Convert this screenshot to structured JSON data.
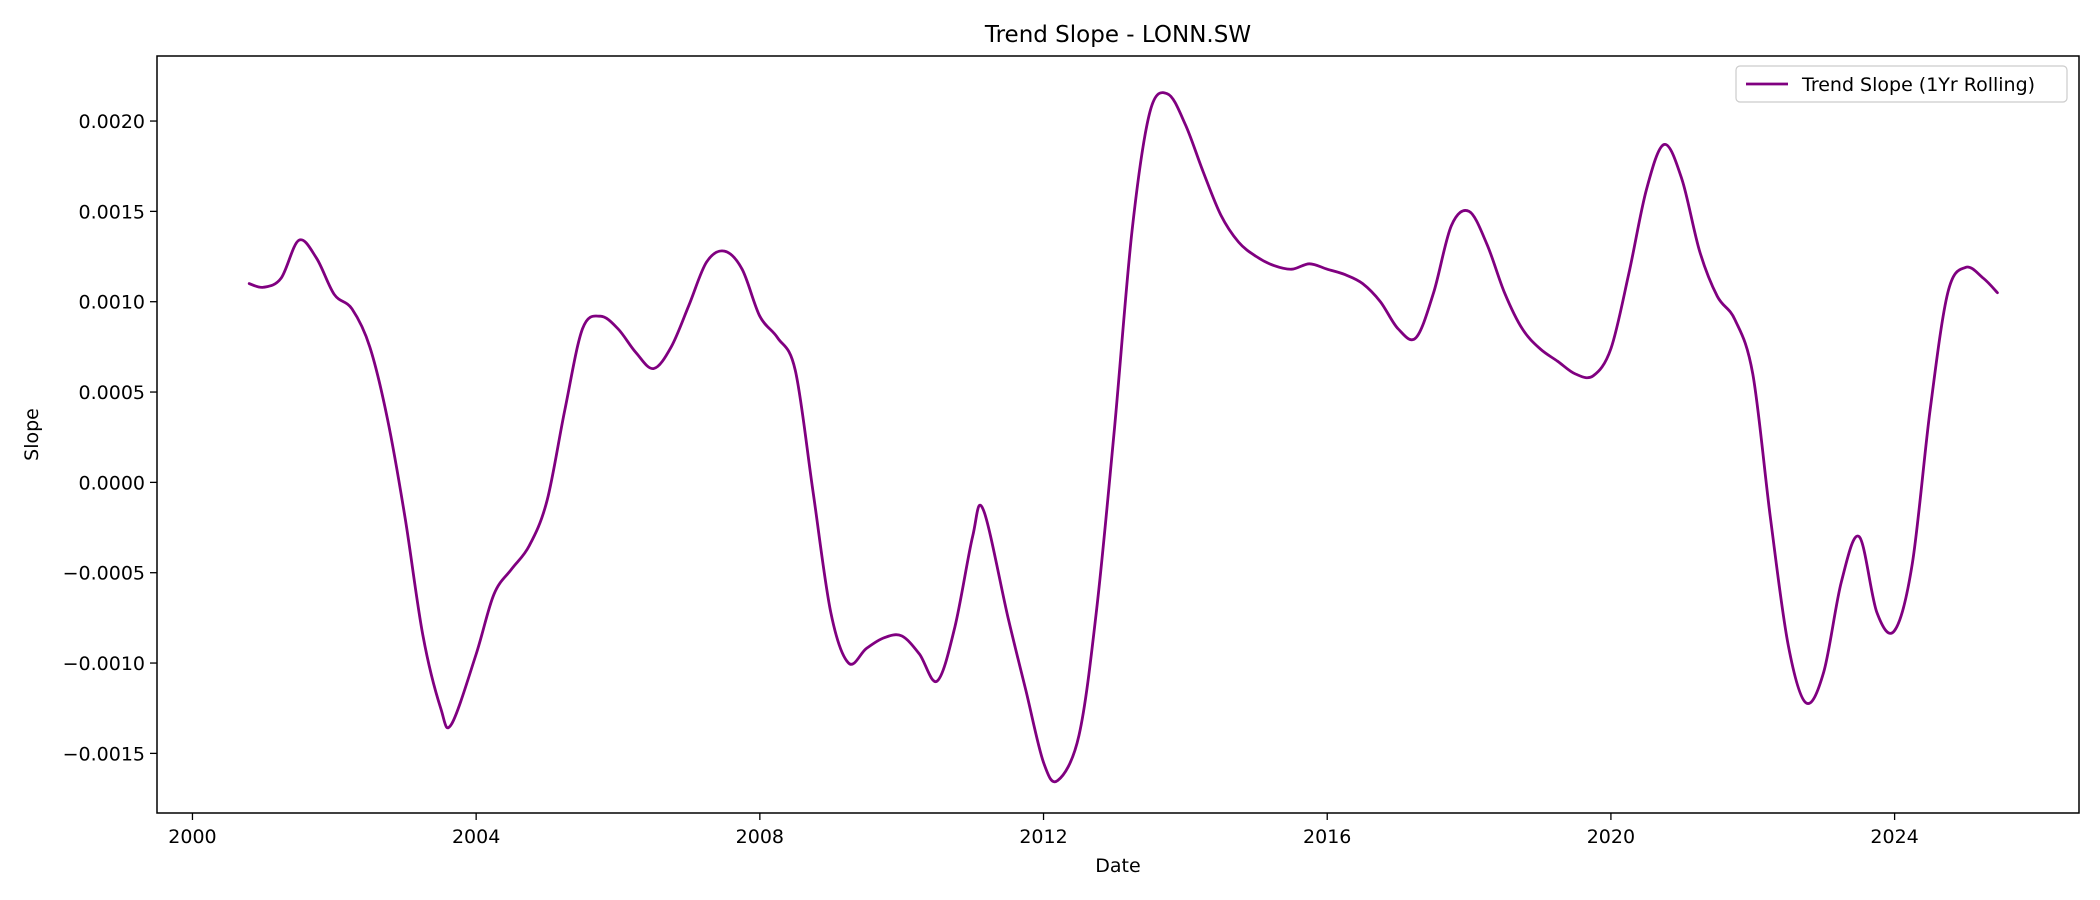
{
  "chart_data": {
    "type": "line",
    "title": "Trend Slope - LONN.SW",
    "xlabel": "Date",
    "ylabel": "Slope",
    "xlim": [
      1999.5,
      2026.6
    ],
    "ylim": [
      -0.00183,
      0.00236
    ],
    "x_ticks": [
      2000,
      2004,
      2008,
      2012,
      2016,
      2020,
      2024
    ],
    "x_tick_labels": [
      "2000",
      "2004",
      "2008",
      "2012",
      "2016",
      "2020",
      "2024"
    ],
    "y_ticks": [
      -0.0015,
      -0.001,
      -0.0005,
      0,
      0.0005,
      0.001,
      0.0015,
      0.002
    ],
    "y_tick_labels": [
      "−0.0015",
      "−0.0010",
      "−0.0005",
      "0.0000",
      "0.0005",
      "0.0010",
      "0.0015",
      "0.0020"
    ],
    "grid": false,
    "legend_position": "top-right",
    "series": [
      {
        "name": "Trend Slope (1Yr Rolling)",
        "color": "#800080",
        "x": [
          2000.8,
          2001.0,
          2001.25,
          2001.5,
          2001.75,
          2002.0,
          2002.25,
          2002.5,
          2002.75,
          2003.0,
          2003.25,
          2003.5,
          2003.65,
          2004.0,
          2004.25,
          2004.5,
          2004.75,
          2005.0,
          2005.25,
          2005.5,
          2005.75,
          2006.0,
          2006.25,
          2006.5,
          2006.75,
          2007.0,
          2007.25,
          2007.5,
          2007.75,
          2008.0,
          2008.25,
          2008.5,
          2008.75,
          2009.0,
          2009.25,
          2009.5,
          2009.75,
          2010.0,
          2010.25,
          2010.5,
          2010.75,
          2011.0,
          2011.15,
          2011.5,
          2011.75,
          2012.0,
          2012.2,
          2012.5,
          2012.75,
          2013.0,
          2013.25,
          2013.5,
          2013.75,
          2014.0,
          2014.25,
          2014.5,
          2014.75,
          2015.0,
          2015.25,
          2015.5,
          2015.75,
          2016.0,
          2016.25,
          2016.5,
          2016.75,
          2017.0,
          2017.25,
          2017.5,
          2017.75,
          2018.0,
          2018.25,
          2018.5,
          2018.75,
          2019.0,
          2019.25,
          2019.5,
          2019.75,
          2020.0,
          2020.25,
          2020.5,
          2020.75,
          2021.0,
          2021.25,
          2021.5,
          2021.75,
          2022.0,
          2022.25,
          2022.5,
          2022.75,
          2023.0,
          2023.25,
          2023.5,
          2023.75,
          2024.0,
          2024.25,
          2024.5,
          2024.75,
          2025.0,
          2025.25,
          2025.45
        ],
        "y": [
          0.0011,
          0.00108,
          0.00113,
          0.00134,
          0.00124,
          0.00104,
          0.00096,
          0.00075,
          0.00035,
          -0.0002,
          -0.00085,
          -0.00125,
          -0.00134,
          -0.00095,
          -0.00062,
          -0.00048,
          -0.00035,
          -0.0001,
          0.0004,
          0.00085,
          0.00092,
          0.00085,
          0.00072,
          0.00063,
          0.00075,
          0.00098,
          0.00122,
          0.00128,
          0.00118,
          0.00092,
          0.0008,
          0.00062,
          -5e-05,
          -0.00072,
          -0.001,
          -0.00092,
          -0.00086,
          -0.00085,
          -0.00095,
          -0.0011,
          -0.0008,
          -0.0003,
          -0.00015,
          -0.00075,
          -0.00115,
          -0.00155,
          -0.00165,
          -0.0014,
          -0.0007,
          0.0003,
          0.0014,
          0.00205,
          0.00215,
          0.00198,
          0.00172,
          0.00148,
          0.00133,
          0.00125,
          0.0012,
          0.00118,
          0.00121,
          0.00118,
          0.00115,
          0.0011,
          0.001,
          0.00085,
          0.0008,
          0.00105,
          0.00142,
          0.0015,
          0.00132,
          0.00105,
          0.00085,
          0.00074,
          0.00067,
          0.0006,
          0.00059,
          0.00074,
          0.00115,
          0.00162,
          0.00187,
          0.00168,
          0.00128,
          0.00103,
          0.0009,
          0.0006,
          -0.0002,
          -0.0009,
          -0.00122,
          -0.00105,
          -0.00055,
          -0.0003,
          -0.00072,
          -0.00082,
          -0.00045,
          0.0004,
          0.00105,
          0.00119,
          0.00113,
          0.00105
        ]
      }
    ]
  }
}
